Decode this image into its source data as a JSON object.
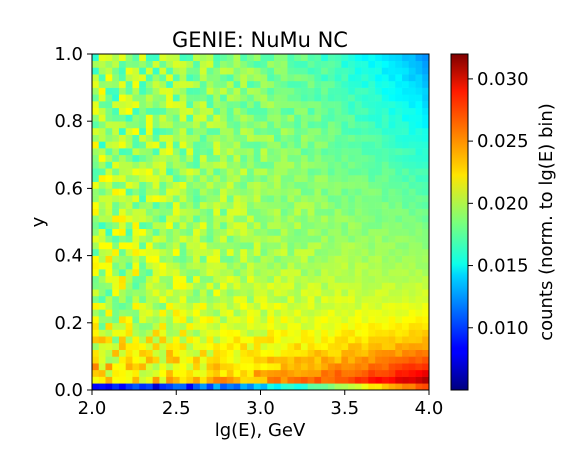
{
  "chart_data": {
    "type": "heatmap",
    "title": "GENIE: NuMu NC",
    "xlabel": "lg(E), GeV",
    "ylabel": "y",
    "colorbar_label": "counts (norm. to lg(E) bin)",
    "colormap": "jet",
    "xlim": [
      2.0,
      4.0
    ],
    "ylim": [
      0.0,
      1.0
    ],
    "clim": [
      0.005,
      0.032
    ],
    "x_ticks": [
      2.0,
      2.5,
      3.0,
      3.5,
      4.0
    ],
    "x_tick_labels": [
      "2.0",
      "2.5",
      "3.0",
      "3.5",
      "4.0"
    ],
    "y_ticks": [
      0.0,
      0.2,
      0.4,
      0.6,
      0.8,
      1.0
    ],
    "y_tick_labels": [
      "0.0",
      "0.2",
      "0.4",
      "0.6",
      "0.8",
      "1.0"
    ],
    "colorbar_ticks": [
      0.01,
      0.015,
      0.02,
      0.025,
      0.03
    ],
    "colorbar_tick_labels": [
      "0.010",
      "0.015",
      "0.020",
      "0.025",
      "0.030"
    ],
    "grid": false,
    "n_x_bins": 50,
    "n_y_bins": 50,
    "cell_value_model": {
      "description": "approximate bin values read from colour",
      "first_y_bin_low_energy": 0.0075,
      "first_y_bin_high_energy": 0.027,
      "low_y_high_energy_peak": 0.03,
      "high_y_high_energy_min": 0.0135,
      "bulk_typical": 0.0195
    }
  }
}
